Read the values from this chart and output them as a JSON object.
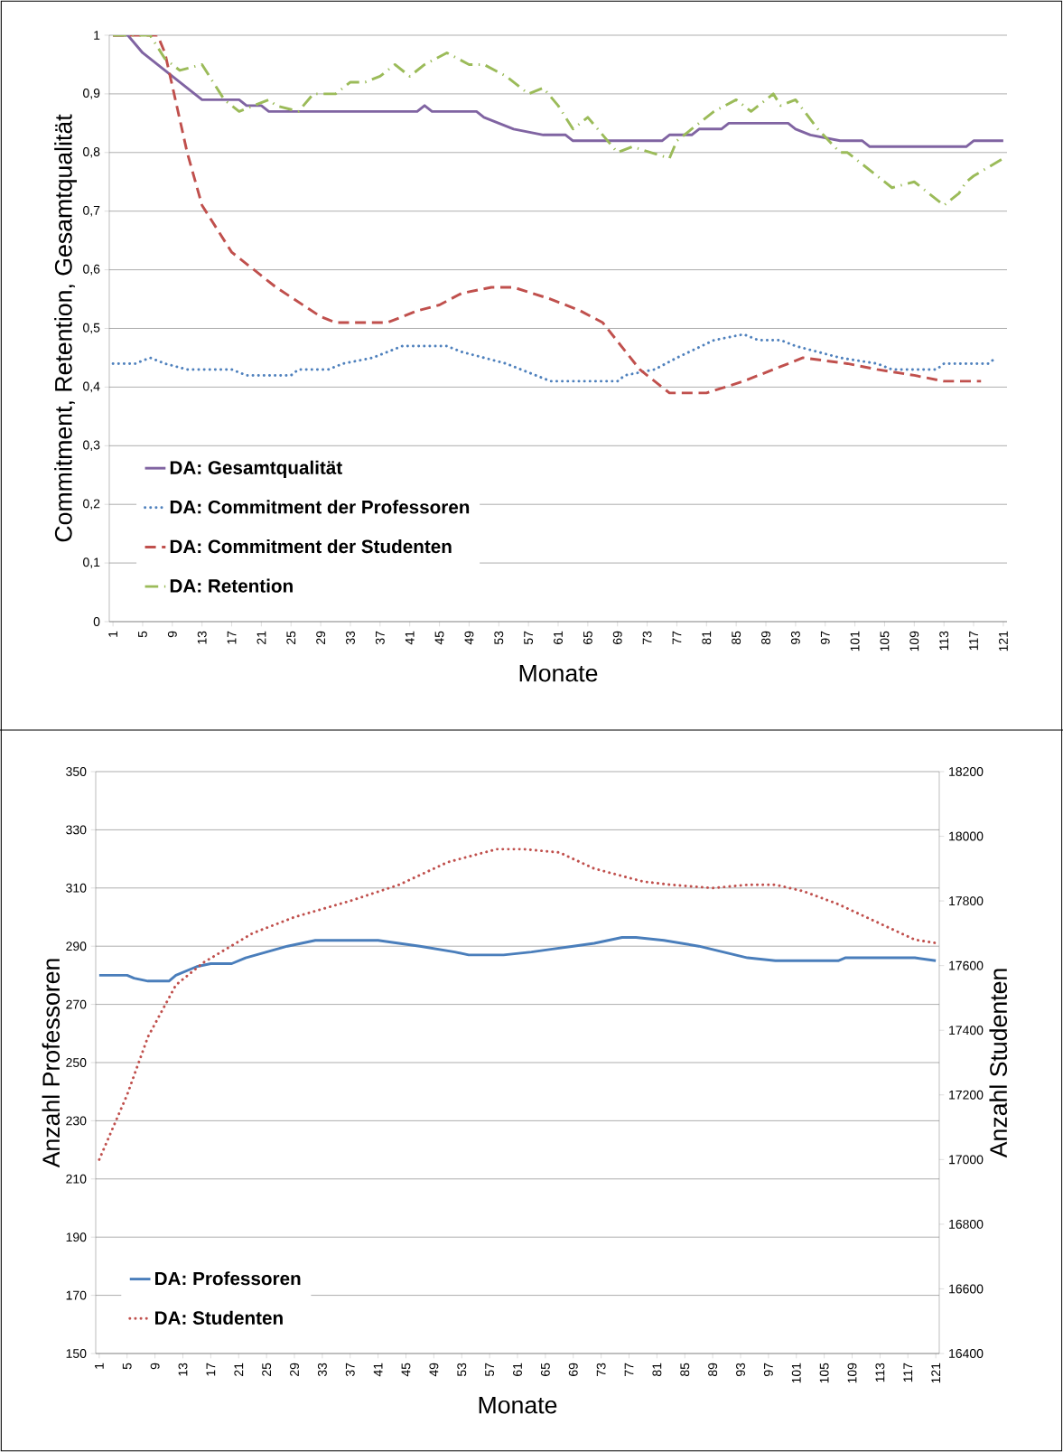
{
  "chart_data": [
    {
      "type": "line",
      "ylabel": "Commitment, Retention, Gesamtqualität",
      "xlabel": "Monate",
      "xlim": [
        0.5,
        121.5
      ],
      "ylim": [
        0,
        1
      ],
      "xticks": [
        1,
        5,
        9,
        13,
        17,
        21,
        25,
        29,
        33,
        37,
        41,
        45,
        49,
        53,
        57,
        61,
        65,
        69,
        73,
        77,
        81,
        85,
        89,
        93,
        97,
        101,
        105,
        109,
        113,
        117,
        121
      ],
      "yticks": [
        0,
        {
          "value": 0.1,
          "label": "0,1"
        },
        {
          "value": 0.2,
          "label": "0,2"
        },
        {
          "value": 0.3,
          "label": "0,3"
        },
        {
          "value": 0.4,
          "label": "0,4"
        },
        {
          "value": 0.5,
          "label": "0,5"
        },
        {
          "value": 0.6,
          "label": "0,6"
        },
        {
          "value": 0.7,
          "label": "0,7"
        },
        {
          "value": 0.8,
          "label": "0,8"
        },
        {
          "value": 0.9,
          "label": "0,9"
        },
        1
      ],
      "grid": "y",
      "legend": "bottom left",
      "series": [
        {
          "name": "DA: Gesamtqualität",
          "color": "#8064a2",
          "line_style": "solid",
          "x": [
            1,
            3,
            5,
            12,
            13,
            18,
            19,
            21,
            22,
            42,
            43,
            44,
            50,
            51,
            53,
            55,
            59,
            62,
            63,
            75,
            76,
            79,
            80,
            83,
            84,
            92,
            93,
            95,
            99,
            102,
            103,
            116,
            117,
            121
          ],
          "values": [
            1,
            1,
            0.97,
            0.9,
            0.89,
            0.89,
            0.88,
            0.88,
            0.87,
            0.87,
            0.88,
            0.87,
            0.87,
            0.86,
            0.85,
            0.84,
            0.83,
            0.83,
            0.82,
            0.82,
            0.83,
            0.83,
            0.84,
            0.84,
            0.85,
            0.85,
            0.84,
            0.83,
            0.82,
            0.82,
            0.81,
            0.81,
            0.82,
            0.82
          ]
        },
        {
          "name": "DA: Commitment der Professoren",
          "color": "#4f81bd",
          "line_style": "dotted",
          "x": [
            1,
            4,
            6,
            8,
            11,
            17,
            19,
            25,
            26,
            30,
            32,
            36,
            40,
            46,
            48,
            51,
            54,
            56,
            60,
            69,
            70,
            74,
            77,
            82,
            86,
            88,
            91,
            93,
            96,
            99,
            104,
            106,
            112,
            113,
            119,
            120
          ],
          "values": [
            0.44,
            0.44,
            0.45,
            0.44,
            0.43,
            0.43,
            0.42,
            0.42,
            0.43,
            0.43,
            0.44,
            0.45,
            0.47,
            0.47,
            0.46,
            0.45,
            0.44,
            0.43,
            0.41,
            0.41,
            0.42,
            0.43,
            0.45,
            0.48,
            0.49,
            0.48,
            0.48,
            0.47,
            0.46,
            0.45,
            0.44,
            0.43,
            0.43,
            0.44,
            0.44,
            0.45
          ]
        },
        {
          "name": "DA: Commitment der Studenten",
          "color": "#c0504d",
          "line_style": "dashed",
          "x": [
            1,
            7,
            8,
            11,
            13,
            17,
            23,
            29,
            31,
            38,
            42,
            45,
            48,
            52,
            55,
            60,
            64,
            67,
            72,
            76,
            81,
            86,
            90,
            94,
            100,
            104,
            109,
            113,
            118
          ],
          "values": [
            1,
            1,
            0.97,
            0.8,
            0.71,
            0.63,
            0.57,
            0.52,
            0.51,
            0.51,
            0.53,
            0.54,
            0.56,
            0.57,
            0.57,
            0.55,
            0.53,
            0.51,
            0.43,
            0.39,
            0.39,
            0.41,
            0.43,
            0.45,
            0.44,
            0.43,
            0.42,
            0.41,
            0.41
          ]
        },
        {
          "name": "DA: Retention",
          "color": "#9bbb59",
          "line_style": "dashdot",
          "x": [
            1,
            6,
            8,
            10,
            13,
            16,
            18,
            20,
            22,
            23,
            26,
            28,
            31,
            33,
            35,
            37,
            39,
            41,
            43,
            46,
            49,
            51,
            54,
            57,
            59,
            61,
            63,
            65,
            67,
            69,
            71,
            76,
            77,
            80,
            82,
            85,
            87,
            90,
            91,
            93,
            96,
            99,
            100,
            102,
            106,
            109,
            111,
            113,
            115,
            116,
            117,
            121
          ],
          "values": [
            1,
            1,
            0.96,
            0.94,
            0.95,
            0.89,
            0.87,
            0.88,
            0.89,
            0.88,
            0.87,
            0.9,
            0.9,
            0.92,
            0.92,
            0.93,
            0.95,
            0.93,
            0.95,
            0.97,
            0.95,
            0.95,
            0.93,
            0.9,
            0.91,
            0.88,
            0.84,
            0.86,
            0.83,
            0.8,
            0.81,
            0.79,
            0.82,
            0.85,
            0.87,
            0.89,
            0.87,
            0.9,
            0.88,
            0.89,
            0.84,
            0.8,
            0.8,
            0.78,
            0.74,
            0.75,
            0.73,
            0.71,
            0.73,
            0.75,
            0.76,
            0.79
          ]
        }
      ]
    },
    {
      "type": "line",
      "ylabel": "Anzahl Professoren",
      "y2label": "Anzahl Studenten",
      "xlabel": "Monate",
      "xlim": [
        0.5,
        121.5
      ],
      "ylim": [
        150,
        350
      ],
      "y2lim": [
        16400,
        18200
      ],
      "xticks": [
        1,
        5,
        9,
        13,
        17,
        21,
        25,
        29,
        33,
        37,
        41,
        45,
        49,
        53,
        57,
        61,
        65,
        69,
        73,
        77,
        81,
        85,
        89,
        93,
        97,
        101,
        105,
        109,
        113,
        117,
        121
      ],
      "yticks": [
        150,
        170,
        190,
        210,
        230,
        250,
        270,
        290,
        310,
        330,
        350
      ],
      "y2ticks": [
        16400,
        16600,
        16800,
        17000,
        17200,
        17400,
        17600,
        17800,
        18000,
        18200
      ],
      "grid": "y",
      "legend": "bottom left",
      "series": [
        {
          "name": "DA: Professoren",
          "color": "#4a7ebb",
          "line_style": "solid",
          "x": [
            1,
            5,
            6,
            8,
            11,
            12,
            15,
            17,
            20,
            22,
            25,
            28,
            30,
            32,
            35,
            41,
            44,
            47,
            52,
            54,
            59,
            63,
            66,
            69,
            72,
            76,
            78,
            82,
            87,
            94,
            98,
            107,
            108,
            118,
            121
          ],
          "values": [
            280,
            280,
            279,
            278,
            278,
            280,
            283,
            284,
            284,
            286,
            288,
            290,
            291,
            292,
            292,
            292,
            291,
            290,
            288,
            287,
            287,
            288,
            289,
            290,
            291,
            293,
            293,
            292,
            290,
            286,
            285,
            285,
            286,
            286,
            285
          ]
        },
        {
          "name": "DA: Studenten",
          "color": "#c0504d",
          "line_style": "dotted",
          "axis": "y2",
          "x": [
            1,
            5,
            8,
            12,
            16,
            23,
            29,
            37,
            44,
            51,
            58,
            62,
            67,
            72,
            79,
            83,
            89,
            94,
            98,
            102,
            107,
            113,
            118,
            121
          ],
          "values": [
            17000,
            17200,
            17380,
            17540,
            17610,
            17700,
            17750,
            17800,
            17850,
            17920,
            17960,
            17960,
            17950,
            17900,
            17860,
            17850,
            17840,
            17850,
            17850,
            17830,
            17790,
            17730,
            17680,
            17670
          ]
        }
      ]
    }
  ]
}
